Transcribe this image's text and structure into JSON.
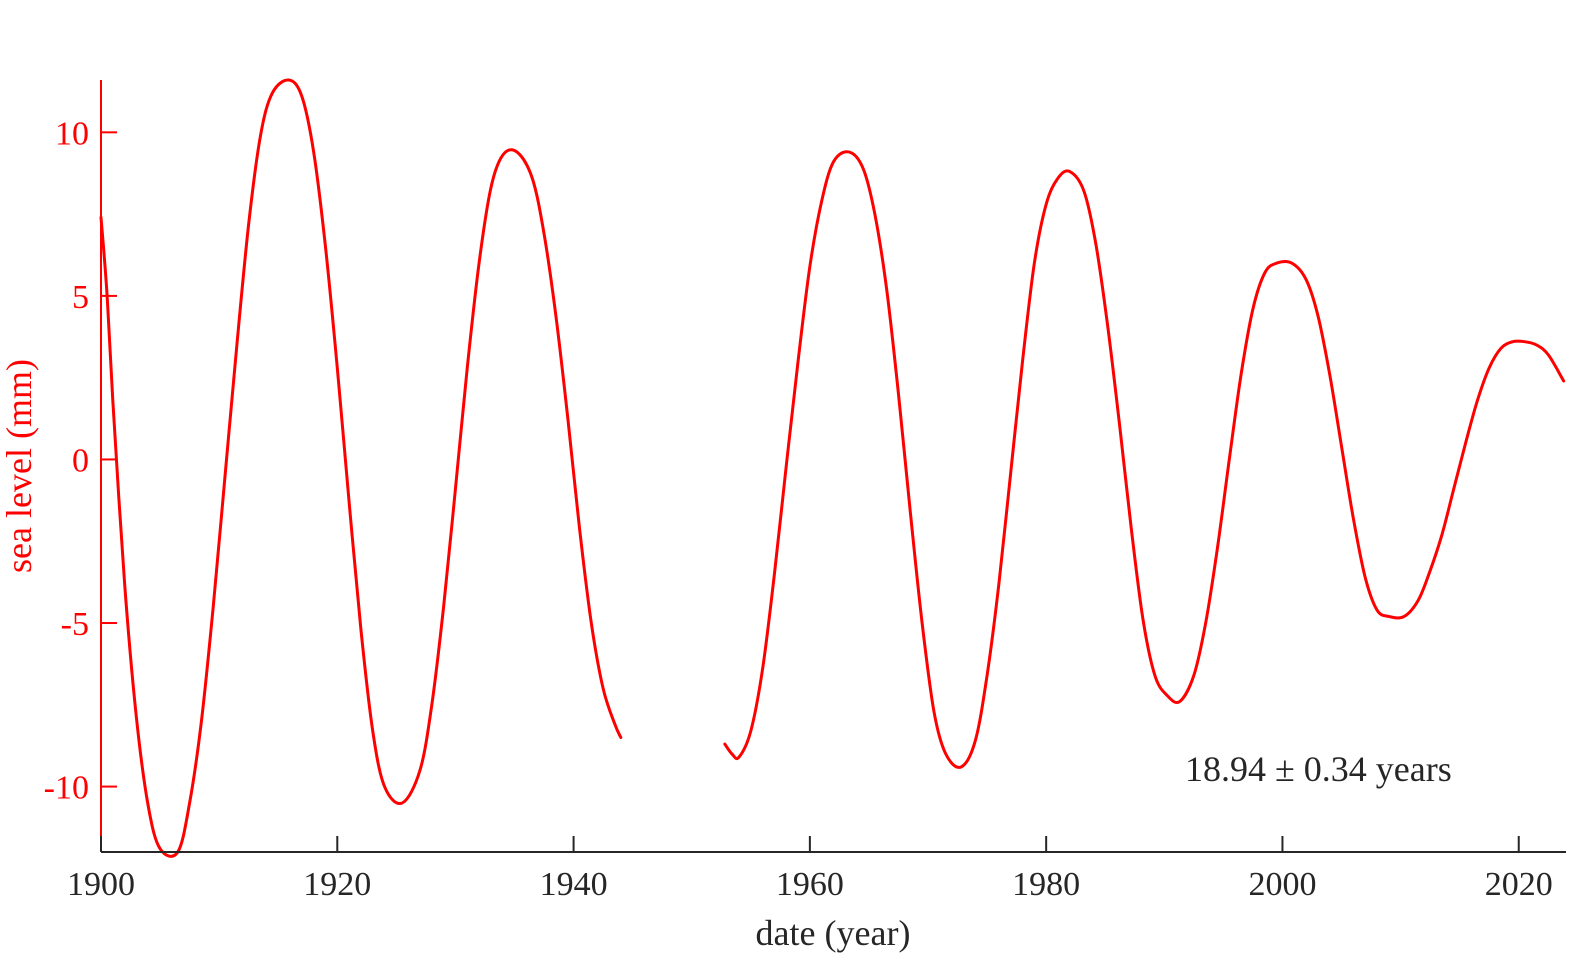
{
  "chart_data": {
    "type": "line",
    "title": "",
    "xlabel": "date (year)",
    "ylabel": "sea level (mm)",
    "xlim": [
      1900,
      2024
    ],
    "ylim": [
      -12,
      11.6
    ],
    "xticks": [
      1900,
      1920,
      1940,
      1960,
      1980,
      2000,
      2020
    ],
    "yticks": [
      -10,
      -5,
      0,
      5,
      10
    ],
    "xtick_labels": [
      "1900",
      "1920",
      "1940",
      "1960",
      "1980",
      "2000",
      "2020"
    ],
    "ytick_labels": [
      "-10",
      "-5",
      "0",
      "5",
      "10"
    ],
    "grid": false,
    "legend": "none",
    "annotation": "18.94 ± 0.34 years",
    "colors": {
      "series": "#ff0000",
      "y_axis": "#ff0000",
      "x_axis": "#262626",
      "annotation": "#262626"
    },
    "series": [
      {
        "segments": [
          [
            [
              1900,
              7.4
            ],
            [
              1900.5,
              5.1
            ],
            [
              1901,
              1.8
            ],
            [
              1902,
              -3.8
            ],
            [
              1903,
              -7.9
            ],
            [
              1904,
              -10.6
            ],
            [
              1905,
              -11.9
            ],
            [
              1906.5,
              -12
            ],
            [
              1907.5,
              -10.5
            ],
            [
              1908.5,
              -8
            ],
            [
              1909.5,
              -4.5
            ],
            [
              1910.5,
              -0.5
            ],
            [
              1911.5,
              3.5
            ],
            [
              1912.5,
              7.2
            ],
            [
              1913.5,
              9.9
            ],
            [
              1914.5,
              11.2
            ],
            [
              1915.9,
              11.6
            ],
            [
              1917,
              11.1
            ],
            [
              1918,
              9.4
            ],
            [
              1919,
              6.5
            ],
            [
              1920,
              2.8
            ],
            [
              1921,
              -1.3
            ],
            [
              1922,
              -5.2
            ],
            [
              1923,
              -8.3
            ],
            [
              1924,
              -10
            ],
            [
              1925.5,
              -10.5
            ],
            [
              1927,
              -9.5
            ],
            [
              1928,
              -7.5
            ],
            [
              1929,
              -4.5
            ],
            [
              1930,
              -0.9
            ],
            [
              1931,
              2.8
            ],
            [
              1932,
              6
            ],
            [
              1933,
              8.3
            ],
            [
              1934,
              9.3
            ],
            [
              1935.2,
              9.4
            ],
            [
              1936.5,
              8.6
            ],
            [
              1937.5,
              6.9
            ],
            [
              1938.5,
              4.4
            ],
            [
              1939.5,
              1.3
            ],
            [
              1940.5,
              -2.1
            ],
            [
              1941.5,
              -5
            ],
            [
              1942.5,
              -7
            ],
            [
              1943.5,
              -8.1
            ],
            [
              1944,
              -8.5
            ]
          ],
          [
            [
              1952.8,
              -8.7
            ],
            [
              1953.4,
              -9
            ],
            [
              1954,
              -9.1
            ],
            [
              1955,
              -8.3
            ],
            [
              1956,
              -6.4
            ],
            [
              1957,
              -3.5
            ],
            [
              1958,
              -0.2
            ],
            [
              1959,
              3
            ],
            [
              1960,
              5.9
            ],
            [
              1961,
              7.9
            ],
            [
              1962,
              9.1
            ],
            [
              1963.3,
              9.4
            ],
            [
              1964.5,
              8.9
            ],
            [
              1965.5,
              7.5
            ],
            [
              1966.5,
              5.2
            ],
            [
              1967.5,
              2
            ],
            [
              1968.5,
              -1.6
            ],
            [
              1969.5,
              -5
            ],
            [
              1970.5,
              -7.7
            ],
            [
              1971.5,
              -9
            ],
            [
              1972.8,
              -9.4
            ],
            [
              1974,
              -8.6
            ],
            [
              1975,
              -6.6
            ],
            [
              1976,
              -3.8
            ],
            [
              1977,
              -0.4
            ],
            [
              1978,
              3
            ],
            [
              1979,
              6
            ],
            [
              1980,
              7.8
            ],
            [
              1981,
              8.6
            ],
            [
              1982,
              8.8
            ],
            [
              1983.2,
              8.2
            ],
            [
              1984.2,
              6.6
            ],
            [
              1985.2,
              4.1
            ],
            [
              1986.2,
              1.1
            ],
            [
              1987.2,
              -2.1
            ],
            [
              1988.2,
              -4.9
            ],
            [
              1989.2,
              -6.6
            ],
            [
              1990.2,
              -7.2
            ],
            [
              1991.3,
              -7.4
            ],
            [
              1992.5,
              -6.6
            ],
            [
              1993.5,
              -5
            ],
            [
              1994.5,
              -2.7
            ],
            [
              1995.5,
              0
            ],
            [
              1996.5,
              2.6
            ],
            [
              1997.5,
              4.6
            ],
            [
              1998.5,
              5.7
            ],
            [
              1999.5,
              6
            ],
            [
              2000.8,
              6
            ],
            [
              2002,
              5.5
            ],
            [
              2003,
              4.4
            ],
            [
              2004,
              2.6
            ],
            [
              2005,
              0.4
            ],
            [
              2006,
              -1.8
            ],
            [
              2007,
              -3.6
            ],
            [
              2008,
              -4.6
            ],
            [
              2009,
              -4.8
            ],
            [
              2010.3,
              -4.8
            ],
            [
              2011.5,
              -4.3
            ],
            [
              2012.5,
              -3.4
            ],
            [
              2013.5,
              -2.3
            ],
            [
              2014.5,
              -0.9
            ],
            [
              2015.5,
              0.5
            ],
            [
              2016.5,
              1.8
            ],
            [
              2017.5,
              2.8
            ],
            [
              2018.5,
              3.4
            ],
            [
              2019.5,
              3.6
            ],
            [
              2020.5,
              3.6
            ],
            [
              2021.5,
              3.5
            ],
            [
              2022.5,
              3.2
            ],
            [
              2023.8,
              2.4
            ]
          ]
        ]
      }
    ]
  }
}
